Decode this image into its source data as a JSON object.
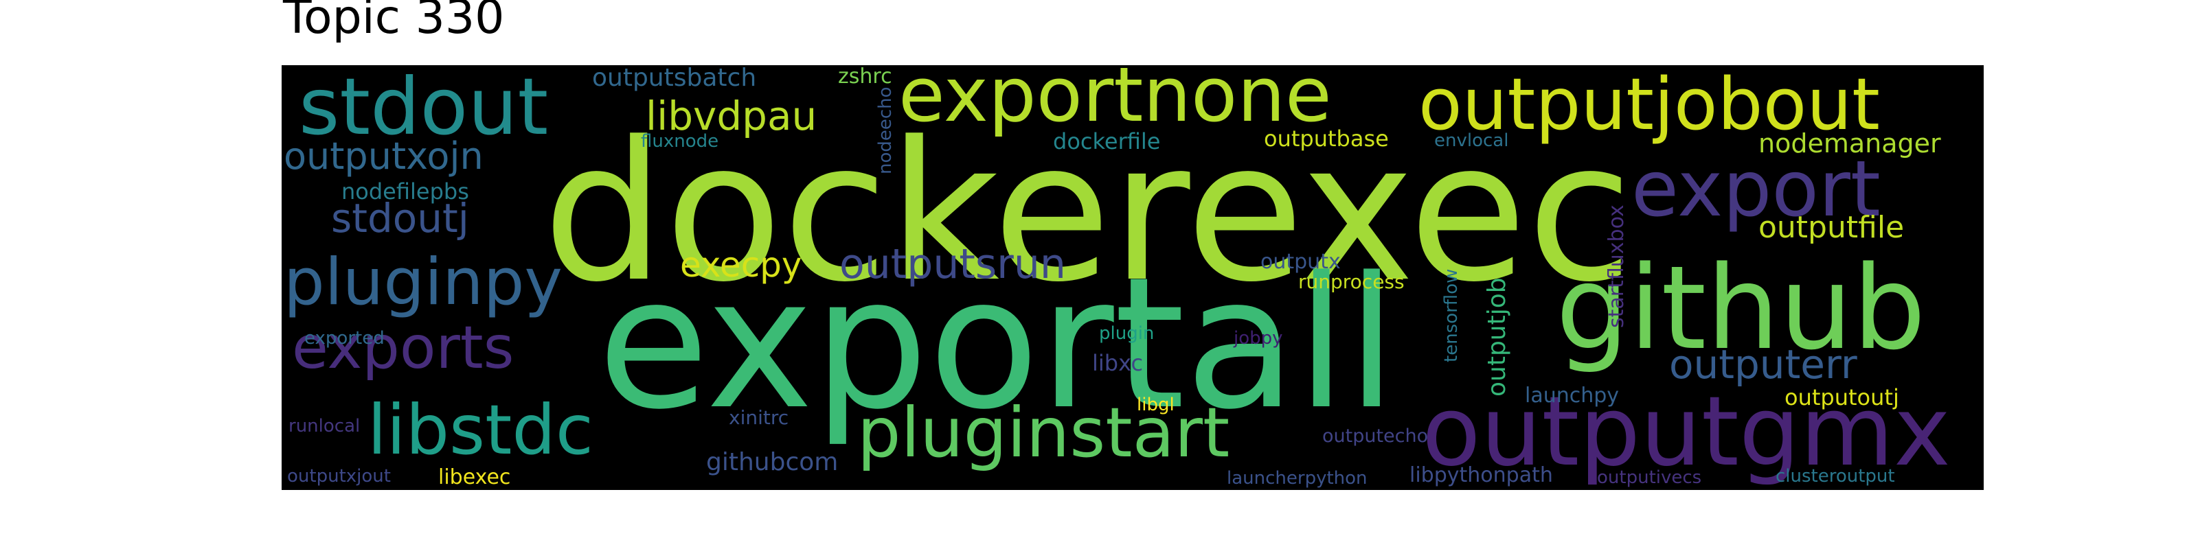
{
  "title": "Topic 330",
  "words": [
    {
      "text": "dockerexec",
      "color": "#a2da37"
    },
    {
      "text": "exportall",
      "color": "#3bbb75"
    },
    {
      "text": "github",
      "color": "#6ece58"
    },
    {
      "text": "outputgmx",
      "color": "#482475"
    },
    {
      "text": "pluginstart",
      "color": "#5ec962"
    },
    {
      "text": "exportnone",
      "color": "#b5de2b"
    },
    {
      "text": "outputjobout",
      "color": "#d0e11c"
    },
    {
      "text": "stdout",
      "color": "#228c8d"
    },
    {
      "text": "libstdc",
      "color": "#1f9e89"
    },
    {
      "text": "export",
      "color": "#453781"
    },
    {
      "text": "pluginpy",
      "color": "#33638d"
    },
    {
      "text": "exports",
      "color": "#472d7b"
    },
    {
      "text": "outputerr",
      "color": "#365c8d"
    },
    {
      "text": "libvdpau",
      "color": "#b8de29"
    },
    {
      "text": "outputsrun",
      "color": "#3e4a89"
    },
    {
      "text": "stdoutj",
      "color": "#3a538b"
    },
    {
      "text": "execpy",
      "color": "#d8e219"
    },
    {
      "text": "outputxojn",
      "color": "#31688e"
    },
    {
      "text": "outputfile",
      "color": "#c2df23"
    },
    {
      "text": "nodemanager",
      "color": "#addc30"
    },
    {
      "text": "githubcom",
      "color": "#3b528b"
    },
    {
      "text": "outputsbatch",
      "color": "#31688e"
    },
    {
      "text": "dockerfile",
      "color": "#24868e"
    },
    {
      "text": "outputbase",
      "color": "#cde11d"
    },
    {
      "text": "nodefilepbs",
      "color": "#287d8e"
    },
    {
      "text": "outputx",
      "color": "#39568c"
    },
    {
      "text": "runprocess",
      "color": "#c8e020"
    },
    {
      "text": "outputjob",
      "color": "#35b779"
    },
    {
      "text": "outputoutj",
      "color": "#dde318"
    },
    {
      "text": "xinitrc",
      "color": "#3b528b"
    },
    {
      "text": "launchpy",
      "color": "#34608d"
    },
    {
      "text": "outputecho",
      "color": "#414487"
    },
    {
      "text": "libxc",
      "color": "#404688"
    },
    {
      "text": "zshrc",
      "color": "#7ad151"
    },
    {
      "text": "fluxnode",
      "color": "#25858e"
    },
    {
      "text": "envlocal",
      "color": "#2c728e"
    },
    {
      "text": "nodeecho",
      "color": "#38598c"
    },
    {
      "text": "startfluxbox",
      "color": "#46307e"
    },
    {
      "text": "tensorflow",
      "color": "#2a768e"
    },
    {
      "text": "plugin",
      "color": "#1fa188"
    },
    {
      "text": "jobpy",
      "color": "#3f2071"
    },
    {
      "text": "exported",
      "color": "#30698e"
    },
    {
      "text": "runlocal",
      "color": "#44377f"
    },
    {
      "text": "libgl",
      "color": "#fde725"
    },
    {
      "text": "outputxjout",
      "color": "#3e4989"
    },
    {
      "text": "libexec",
      "color": "#f1e51d"
    },
    {
      "text": "launcherpython",
      "color": "#3b528b"
    },
    {
      "text": "libpythonpath",
      "color": "#3d4e8a"
    },
    {
      "text": "outputivecs",
      "color": "#46337f"
    },
    {
      "text": "clusteroutput",
      "color": "#2a788e"
    }
  ]
}
